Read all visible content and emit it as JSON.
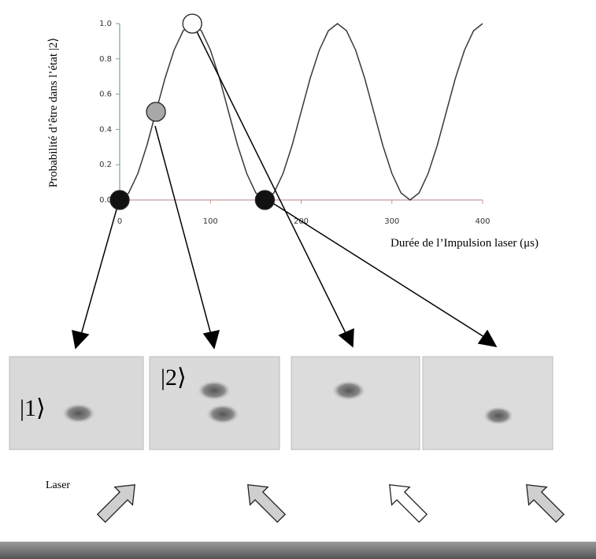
{
  "chart_data": {
    "type": "line",
    "y_label": "Probabilité d’être dans l’état |2⟩",
    "x_label": "Durée de l’Impulsion laser (μs)",
    "x": [
      0,
      10,
      20,
      30,
      40,
      50,
      60,
      70,
      80,
      90,
      100,
      110,
      120,
      130,
      140,
      150,
      160,
      170,
      180,
      190,
      200,
      210,
      220,
      230,
      240,
      250,
      260,
      270,
      280,
      290,
      300,
      310,
      320,
      330,
      340,
      350,
      360,
      370,
      380,
      390,
      400
    ],
    "values": [
      0,
      0.04,
      0.15,
      0.31,
      0.5,
      0.69,
      0.85,
      0.96,
      1,
      0.96,
      0.85,
      0.69,
      0.5,
      0.31,
      0.15,
      0.04,
      0,
      0.04,
      0.15,
      0.31,
      0.5,
      0.69,
      0.85,
      0.96,
      1,
      0.96,
      0.85,
      0.69,
      0.5,
      0.31,
      0.15,
      0.04,
      0,
      0.04,
      0.15,
      0.31,
      0.5,
      0.69,
      0.85,
      0.96,
      1
    ],
    "color": "#3a3a3a",
    "markers": {
      "x": [
        0,
        40,
        80,
        160
      ],
      "values": [
        0,
        0.5,
        1,
        0
      ],
      "colors": [
        "#111111",
        "#a8a8a8",
        "#ffffff",
        "#111111"
      ]
    },
    "xlim": [
      0,
      400
    ],
    "xticks": [
      0,
      100,
      200,
      300,
      400
    ],
    "ylim": [
      0,
      1
    ],
    "yticks": [
      {
        "value": 0,
        "label": "0.0"
      },
      0.2,
      0.4,
      0.6,
      0.8,
      {
        "value": 1,
        "label": "1.0"
      }
    ],
    "kets": [
      "|1⟩",
      "|2⟩"
    ],
    "laser_label": "Laser"
  }
}
